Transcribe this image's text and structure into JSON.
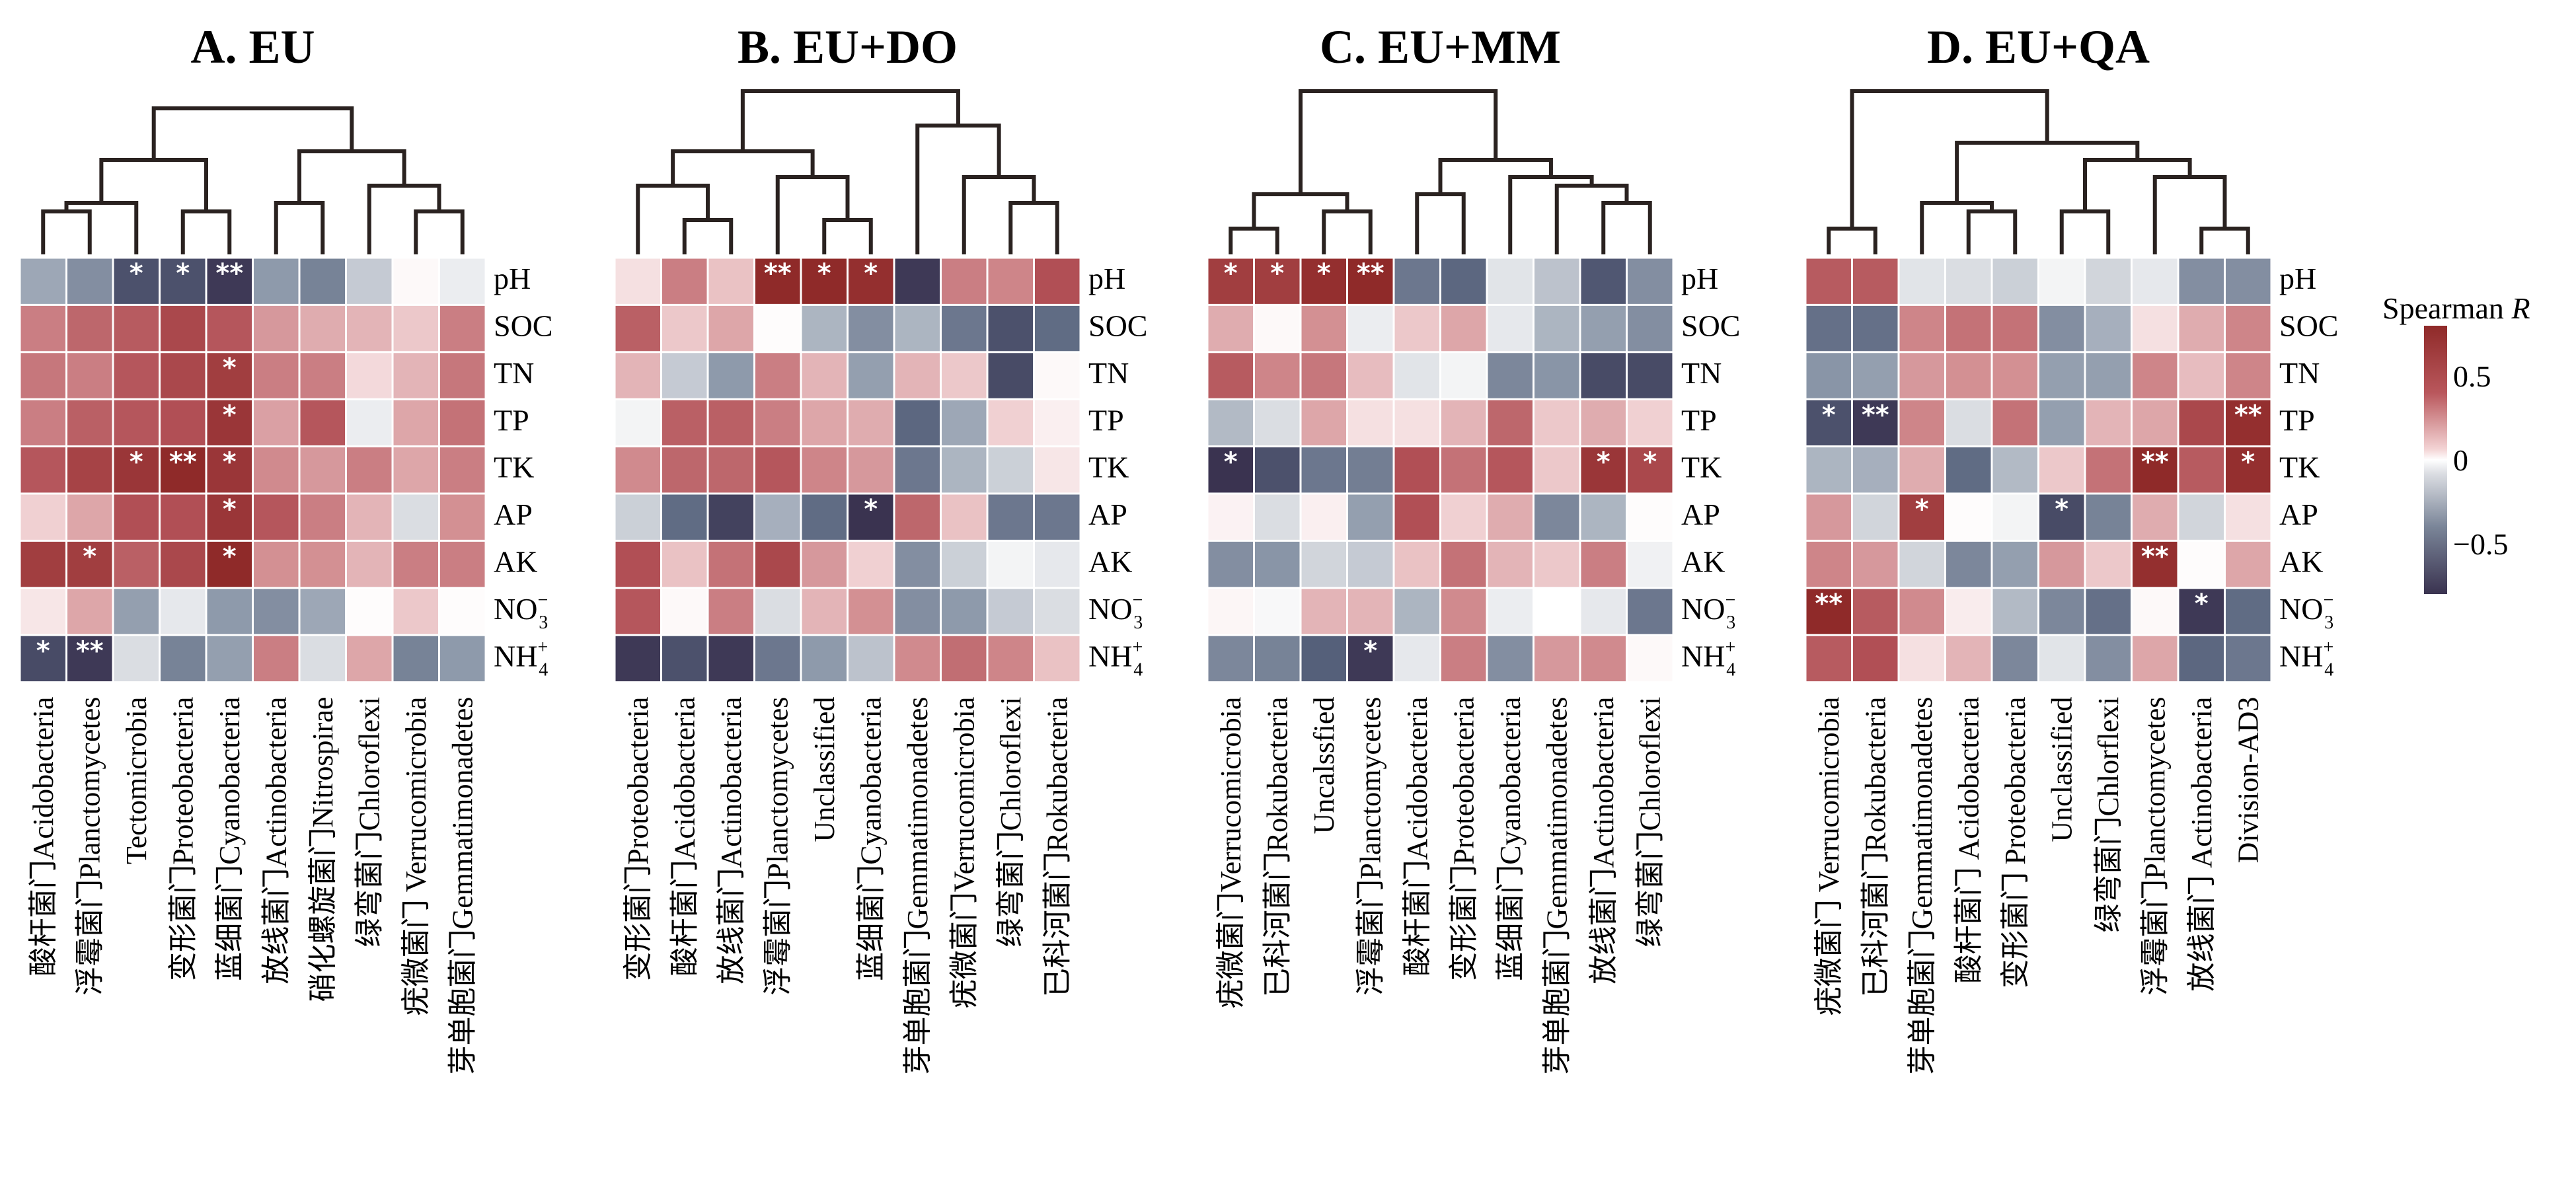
{
  "chart_data": {
    "type": "heatmap",
    "colorbar": {
      "title": "Spearman R",
      "title_plain": "Spearman ",
      "title_italic": "R",
      "range": [
        -0.8,
        0.8
      ],
      "ticks": [
        0.5,
        0,
        -0.5
      ],
      "tick_labels": [
        "0.5",
        "0",
        "−0.5"
      ],
      "colors": {
        "high": "#8f2a29",
        "mid": "#ffffff",
        "low": "#3a3350"
      }
    },
    "rows": [
      "pH",
      "SOC",
      "TN",
      "TP",
      "TK",
      "AP",
      "AK",
      "NO3-",
      "NH4+"
    ],
    "row_labels": [
      {
        "base": "pH",
        "sub": "",
        "sup": ""
      },
      {
        "base": "SOC",
        "sub": "",
        "sup": ""
      },
      {
        "base": "TN",
        "sub": "",
        "sup": ""
      },
      {
        "base": "TP",
        "sub": "",
        "sup": ""
      },
      {
        "base": "TK",
        "sub": "",
        "sup": ""
      },
      {
        "base": "AP",
        "sub": "",
        "sup": ""
      },
      {
        "base": "AK",
        "sub": "",
        "sup": ""
      },
      {
        "base": "NO",
        "sub": "3",
        "sup": "−"
      },
      {
        "base": "NH",
        "sub": "4",
        "sup": "+"
      }
    ],
    "panels": [
      {
        "title": "A. EU",
        "columns": [
          "酸杆菌门Acidobacteria",
          "浮霉菌门Planctomycetes",
          "Tectomicrobia",
          "变形菌门Proteobacteria",
          "蓝细菌门Cyanobacteria",
          "放线菌门Actinobacteria",
          "硝化螺旋菌门Nitrospirae",
          "绿弯菌门Chloroflexi",
          "疣微菌门 Verrucomicrobia",
          "芽单胞菌门Gemmatimonadetes"
        ],
        "dendrogram": [
          [
            0,
            1,
            0.25
          ],
          [
            3,
            4,
            0.25
          ],
          [
            2,
            10,
            0.3
          ],
          [
            11,
            12,
            0.55
          ],
          [
            8,
            9,
            0.25
          ],
          [
            7,
            14,
            0.4
          ],
          [
            5,
            6,
            0.3
          ],
          [
            16,
            15,
            0.6
          ],
          [
            13,
            17,
            0.85
          ]
        ],
        "values": [
          [
            -0.35,
            -0.45,
            -0.7,
            -0.7,
            -0.78,
            -0.4,
            -0.5,
            -0.22,
            0.02,
            -0.08
          ],
          [
            0.45,
            0.55,
            0.6,
            0.68,
            0.62,
            0.35,
            0.28,
            0.25,
            0.18,
            0.45
          ],
          [
            0.48,
            0.45,
            0.62,
            0.68,
            0.72,
            0.45,
            0.45,
            0.12,
            0.25,
            0.48
          ],
          [
            0.45,
            0.58,
            0.62,
            0.65,
            0.75,
            0.32,
            0.62,
            -0.08,
            0.3,
            0.5
          ],
          [
            0.62,
            0.7,
            0.75,
            0.8,
            0.75,
            0.4,
            0.35,
            0.45,
            0.3,
            0.45
          ],
          [
            0.15,
            0.3,
            0.65,
            0.65,
            0.75,
            0.62,
            0.45,
            0.25,
            -0.15,
            0.38
          ],
          [
            0.72,
            0.72,
            0.58,
            0.68,
            0.8,
            0.38,
            0.38,
            0.25,
            0.45,
            0.45
          ],
          [
            0.08,
            0.3,
            -0.38,
            -0.1,
            -0.4,
            -0.45,
            -0.35,
            0.01,
            0.18,
            0.01
          ],
          [
            -0.72,
            -0.78,
            -0.15,
            -0.5,
            -0.38,
            0.45,
            -0.15,
            0.3,
            -0.5,
            -0.4
          ]
        ],
        "significance": [
          [
            "",
            "",
            "*",
            "*",
            "**",
            "",
            "",
            "",
            "",
            ""
          ],
          [
            "",
            "",
            "",
            "",
            "",
            "",
            "",
            "",
            "",
            ""
          ],
          [
            "",
            "",
            "",
            "",
            "*",
            "",
            "",
            "",
            "",
            ""
          ],
          [
            "",
            "",
            "",
            "",
            "*",
            "",
            "",
            "",
            "",
            ""
          ],
          [
            "",
            "",
            "*",
            "**",
            "*",
            "",
            "",
            "",
            "",
            ""
          ],
          [
            "",
            "",
            "",
            "",
            "*",
            "",
            "",
            "",
            "",
            ""
          ],
          [
            "",
            "*",
            "",
            "",
            "*",
            "",
            "",
            "",
            "",
            ""
          ],
          [
            "",
            "",
            "",
            "",
            "",
            "",
            "",
            "",
            "",
            ""
          ],
          [
            "*",
            "**",
            "",
            "",
            "",
            "",
            "",
            "",
            "",
            ""
          ]
        ]
      },
      {
        "title": "B. EU+DO",
        "columns": [
          "变形菌门Proteobacteria",
          "酸杆菌门Acidobacteria",
          "放线菌门Actinobacteria",
          "浮霉菌门Planctomycetes",
          "Unclassified",
          "蓝细菌门Cyanobacteria",
          "芽单胞菌门Gemmatimonadetes",
          "疣微菌门Verrucomicrobia",
          "绿弯菌门Chloroflexi",
          "已科河菌门Rokubacteria"
        ],
        "dendrogram": [
          [
            1,
            2,
            0.2
          ],
          [
            0,
            10,
            0.4
          ],
          [
            4,
            5,
            0.2
          ],
          [
            3,
            12,
            0.45
          ],
          [
            11,
            13,
            0.6
          ],
          [
            8,
            9,
            0.3
          ],
          [
            7,
            15,
            0.45
          ],
          [
            6,
            16,
            0.75
          ],
          [
            14,
            17,
            0.95
          ]
        ],
        "values": [
          [
            0.1,
            0.45,
            0.2,
            0.8,
            0.8,
            0.78,
            -0.78,
            0.45,
            0.42,
            0.65
          ],
          [
            0.58,
            0.18,
            0.3,
            0.01,
            -0.3,
            -0.45,
            -0.3,
            -0.55,
            -0.7,
            -0.6
          ],
          [
            0.25,
            -0.22,
            -0.4,
            0.45,
            0.25,
            -0.38,
            0.25,
            0.18,
            -0.72,
            0.02
          ],
          [
            -0.05,
            0.58,
            0.58,
            0.45,
            0.3,
            0.28,
            -0.62,
            -0.35,
            0.15,
            0.05
          ],
          [
            0.4,
            0.55,
            0.55,
            0.62,
            0.42,
            0.35,
            -0.55,
            -0.3,
            -0.2,
            0.08
          ],
          [
            -0.2,
            -0.6,
            -0.75,
            -0.32,
            -0.6,
            -0.8,
            0.55,
            0.2,
            -0.55,
            -0.55
          ],
          [
            0.65,
            0.2,
            0.5,
            0.68,
            0.35,
            0.15,
            -0.45,
            -0.2,
            -0.05,
            -0.1
          ],
          [
            0.62,
            0.02,
            0.45,
            -0.15,
            0.25,
            0.38,
            -0.45,
            -0.4,
            -0.22,
            -0.15
          ],
          [
            -0.78,
            -0.7,
            -0.78,
            -0.55,
            -0.4,
            -0.25,
            0.4,
            0.52,
            0.42,
            0.2
          ]
        ],
        "significance": [
          [
            "",
            "",
            "",
            "**",
            "*",
            "*",
            "",
            "",
            "",
            ""
          ],
          [
            "",
            "",
            "",
            "",
            "",
            "",
            "",
            "",
            "",
            ""
          ],
          [
            "",
            "",
            "",
            "",
            "",
            "",
            "",
            "",
            "",
            ""
          ],
          [
            "",
            "",
            "",
            "",
            "",
            "",
            "",
            "",
            "",
            ""
          ],
          [
            "",
            "",
            "",
            "",
            "",
            "",
            "",
            "",
            "",
            ""
          ],
          [
            "",
            "",
            "",
            "",
            "",
            "*",
            "",
            "",
            "",
            ""
          ],
          [
            "",
            "",
            "",
            "",
            "",
            "",
            "",
            "",
            "",
            ""
          ],
          [
            "",
            "",
            "",
            "",
            "",
            "",
            "",
            "",
            "",
            ""
          ],
          [
            "",
            "",
            "",
            "",
            "",
            "",
            "",
            "",
            "",
            ""
          ]
        ]
      },
      {
        "title": "C. EU+MM",
        "columns": [
          "疣微菌门Verrucomicrobia",
          "已科河菌门Rokubacteria",
          "Uncalssfied",
          "浮霉菌门Planctomycetes",
          "酸杆菌门Acidobacteria",
          "变形菌门Proteobacteria",
          "蓝细菌门Cyanobacteria",
          "芽单胞菌门Gemmatimonadetes",
          "放线菌门Actinobacteria",
          "绿弯菌门Chloroflexi"
        ],
        "dendrogram": [
          [
            0,
            1,
            0.15
          ],
          [
            2,
            3,
            0.25
          ],
          [
            10,
            11,
            0.35
          ],
          [
            4,
            5,
            0.35
          ],
          [
            8,
            9,
            0.3
          ],
          [
            7,
            14,
            0.4
          ],
          [
            6,
            15,
            0.45
          ],
          [
            13,
            16,
            0.55
          ],
          [
            12,
            17,
            0.95
          ]
        ],
        "values": [
          [
            0.72,
            0.72,
            0.78,
            0.8,
            -0.55,
            -0.62,
            -0.12,
            -0.25,
            -0.68,
            -0.45
          ],
          [
            0.28,
            0.02,
            0.38,
            -0.08,
            0.18,
            0.3,
            -0.1,
            -0.3,
            -0.38,
            -0.45
          ],
          [
            0.6,
            0.42,
            0.48,
            0.22,
            -0.12,
            -0.05,
            -0.48,
            -0.42,
            -0.72,
            -0.72
          ],
          [
            -0.28,
            -0.15,
            0.3,
            0.1,
            0.1,
            0.25,
            0.55,
            0.18,
            0.28,
            0.15
          ],
          [
            -0.8,
            -0.7,
            -0.55,
            -0.52,
            0.65,
            0.5,
            0.62,
            0.18,
            0.75,
            0.68
          ],
          [
            0.04,
            -0.15,
            0.05,
            -0.38,
            0.65,
            0.15,
            0.28,
            -0.48,
            -0.3,
            0.01
          ],
          [
            -0.45,
            -0.42,
            -0.18,
            -0.22,
            0.2,
            0.5,
            0.25,
            0.18,
            0.45,
            -0.06
          ],
          [
            0.03,
            -0.03,
            0.25,
            0.25,
            -0.3,
            0.4,
            -0.08,
            0.0,
            -0.1,
            -0.55
          ],
          [
            -0.48,
            -0.5,
            -0.65,
            -0.78,
            -0.1,
            0.45,
            -0.45,
            0.35,
            0.4,
            0.02
          ]
        ],
        "significance": [
          [
            "*",
            "*",
            "*",
            "**",
            "",
            "",
            "",
            "",
            "",
            ""
          ],
          [
            "",
            "",
            "",
            "",
            "",
            "",
            "",
            "",
            "",
            ""
          ],
          [
            "",
            "",
            "",
            "",
            "",
            "",
            "",
            "",
            "",
            ""
          ],
          [
            "",
            "",
            "",
            "",
            "",
            "",
            "",
            "",
            "",
            ""
          ],
          [
            "*",
            "",
            "",
            "",
            "",
            "",
            "",
            "",
            "*",
            "*"
          ],
          [
            "",
            "",
            "",
            "",
            "",
            "",
            "",
            "",
            "",
            ""
          ],
          [
            "",
            "",
            "",
            "",
            "",
            "",
            "",
            "",
            "",
            ""
          ],
          [
            "",
            "",
            "",
            "",
            "",
            "",
            "",
            "",
            "",
            ""
          ],
          [
            "",
            "",
            "",
            "*",
            "",
            "",
            "",
            "",
            "",
            ""
          ]
        ]
      },
      {
        "title": "D. EU+QA",
        "columns": [
          "疣微菌门 Verrucomicrobia",
          "已科河菌门Rokubacteria",
          "芽单胞菌门Gemmatimonadetes",
          "酸杆菌门 Acidobacteria",
          "变形菌门 Proteobacteria",
          "Unclassified",
          "绿弯菌门Chlorflexi",
          "浮霉菌门Planctomycetes",
          "放线菌门 Actinobacteria",
          "Division-AD3"
        ],
        "dendrogram": [
          [
            0,
            1,
            0.15
          ],
          [
            3,
            4,
            0.25
          ],
          [
            2,
            11,
            0.3
          ],
          [
            5,
            6,
            0.25
          ],
          [
            8,
            9,
            0.15
          ],
          [
            7,
            14,
            0.45
          ],
          [
            13,
            15,
            0.55
          ],
          [
            12,
            16,
            0.65
          ],
          [
            10,
            17,
            0.95
          ]
        ],
        "values": [
          [
            0.6,
            0.6,
            -0.12,
            -0.15,
            -0.2,
            -0.05,
            -0.18,
            -0.1,
            -0.45,
            -0.45
          ],
          [
            -0.58,
            -0.58,
            0.42,
            0.5,
            0.5,
            -0.45,
            -0.32,
            0.1,
            0.28,
            0.42
          ],
          [
            -0.42,
            -0.38,
            0.35,
            0.38,
            0.38,
            -0.38,
            -0.38,
            0.42,
            0.22,
            0.42
          ],
          [
            -0.7,
            -0.78,
            0.42,
            -0.15,
            0.5,
            -0.38,
            0.25,
            0.3,
            0.68,
            0.78
          ],
          [
            -0.3,
            -0.32,
            0.28,
            -0.6,
            -0.28,
            0.18,
            0.5,
            0.8,
            0.6,
            0.78
          ],
          [
            0.35,
            -0.18,
            0.72,
            0.01,
            -0.05,
            -0.72,
            -0.5,
            0.28,
            -0.18,
            0.1
          ],
          [
            0.42,
            0.35,
            -0.18,
            -0.48,
            -0.38,
            0.35,
            0.18,
            0.78,
            0.01,
            0.3
          ],
          [
            0.8,
            0.6,
            0.4,
            0.06,
            -0.28,
            -0.48,
            -0.58,
            0.02,
            -0.78,
            -0.6
          ],
          [
            0.6,
            0.65,
            0.1,
            0.25,
            -0.48,
            -0.12,
            -0.45,
            0.3,
            -0.62,
            -0.55
          ]
        ],
        "significance": [
          [
            "",
            "",
            "",
            "",
            "",
            "",
            "",
            "",
            "",
            ""
          ],
          [
            "",
            "",
            "",
            "",
            "",
            "",
            "",
            "",
            "",
            ""
          ],
          [
            "",
            "",
            "",
            "",
            "",
            "",
            "",
            "",
            "",
            ""
          ],
          [
            "*",
            "**",
            "",
            "",
            "",
            "",
            "",
            "",
            "",
            "**"
          ],
          [
            "",
            "",
            "",
            "",
            "",
            "",
            "",
            "**",
            "",
            "*"
          ],
          [
            "",
            "",
            "*",
            "",
            "",
            "*",
            "",
            "",
            "",
            ""
          ],
          [
            "",
            "",
            "",
            "",
            "",
            "",
            "",
            "**",
            "",
            ""
          ],
          [
            "**",
            "",
            "",
            "",
            "",
            "",
            "",
            "",
            "*",
            ""
          ],
          [
            "",
            "",
            "",
            "",
            "",
            "",
            "",
            "",
            "",
            ""
          ]
        ]
      }
    ]
  }
}
